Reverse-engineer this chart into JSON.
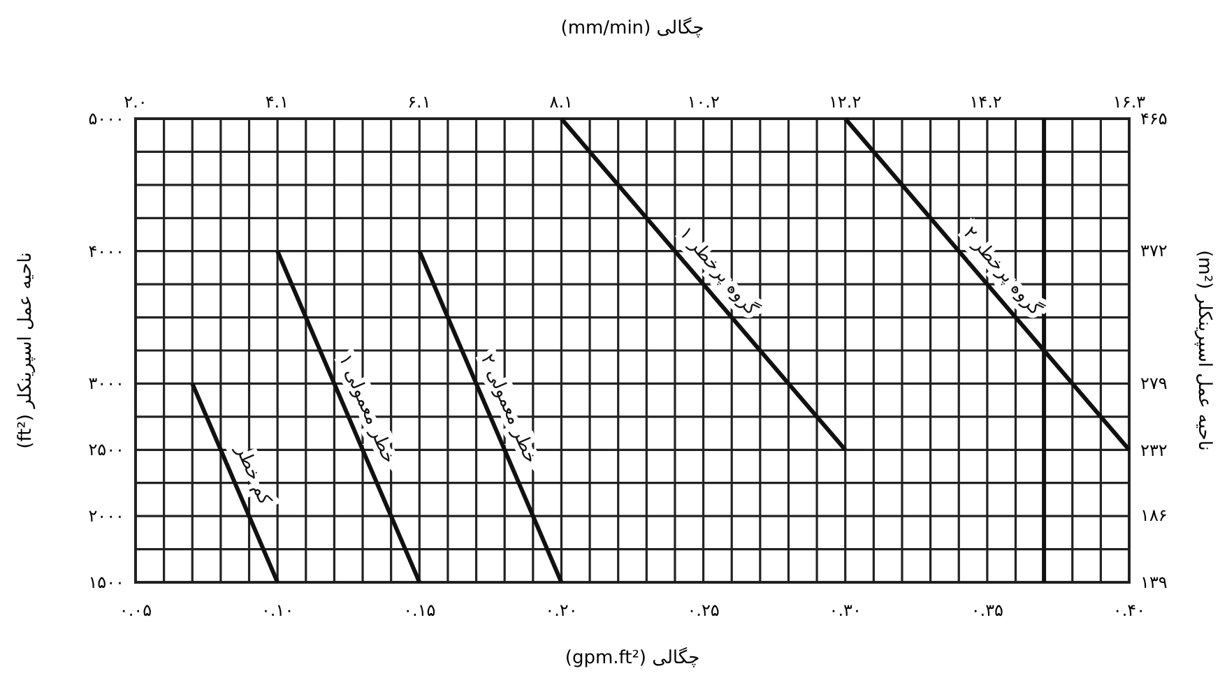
{
  "chart_data": {
    "type": "line",
    "xlabel": "چگالی (gpm.ft²)",
    "x2label": "چگالی (mm/min)",
    "ylabel": "ناحیه عمل اسپرینکلر (ft²)",
    "y2label": "ناحیه عمل اسپرینکلر (m²)",
    "xlim": [
      0.05,
      0.4
    ],
    "xticks": [
      {
        "value": 0.05,
        "label": "۰.۰۵"
      },
      {
        "value": 0.06,
        "label": null
      },
      {
        "value": 0.07,
        "label": null
      },
      {
        "value": 0.08,
        "label": null
      },
      {
        "value": 0.09,
        "label": null
      },
      {
        "value": 0.1,
        "label": "۰.۱۰"
      },
      {
        "value": 0.11,
        "label": null
      },
      {
        "value": 0.12,
        "label": null
      },
      {
        "value": 0.13,
        "label": null
      },
      {
        "value": 0.14,
        "label": null
      },
      {
        "value": 0.15,
        "label": "۰.۱۵"
      },
      {
        "value": 0.16,
        "label": null
      },
      {
        "value": 0.17,
        "label": null
      },
      {
        "value": 0.18,
        "label": null
      },
      {
        "value": 0.19,
        "label": null
      },
      {
        "value": 0.2,
        "label": "۰.۲۰"
      },
      {
        "value": 0.21,
        "label": null
      },
      {
        "value": 0.22,
        "label": null
      },
      {
        "value": 0.23,
        "label": null
      },
      {
        "value": 0.24,
        "label": null
      },
      {
        "value": 0.25,
        "label": "۰.۲۵"
      },
      {
        "value": 0.26,
        "label": null
      },
      {
        "value": 0.27,
        "label": null
      },
      {
        "value": 0.28,
        "label": null
      },
      {
        "value": 0.29,
        "label": null
      },
      {
        "value": 0.3,
        "label": "۰.۳۰"
      },
      {
        "value": 0.31,
        "label": null
      },
      {
        "value": 0.32,
        "label": null
      },
      {
        "value": 0.33,
        "label": null
      },
      {
        "value": 0.34,
        "label": null
      },
      {
        "value": 0.35,
        "label": "۰.۳۵"
      },
      {
        "value": 0.36,
        "label": null
      },
      {
        "value": 0.37,
        "label": null
      },
      {
        "value": 0.38,
        "label": null
      },
      {
        "value": 0.39,
        "label": null
      },
      {
        "value": 0.4,
        "label": "۰.۴۰"
      }
    ],
    "ylim": [
      1500,
      5000
    ],
    "yticks": [
      {
        "value": 1500,
        "label": "۱۵۰۰"
      },
      {
        "value": 1750,
        "label": null
      },
      {
        "value": 2000,
        "label": "۲۰۰۰"
      },
      {
        "value": 2250,
        "label": null
      },
      {
        "value": 2500,
        "label": "۲۵۰۰"
      },
      {
        "value": 2750,
        "label": null
      },
      {
        "value": 3000,
        "label": "۳۰۰۰"
      },
      {
        "value": 3250,
        "label": null
      },
      {
        "value": 3500,
        "label": null
      },
      {
        "value": 3750,
        "label": null
      },
      {
        "value": 4000,
        "label": "۴۰۰۰"
      },
      {
        "value": 4250,
        "label": null
      },
      {
        "value": 4500,
        "label": null
      },
      {
        "value": 4750,
        "label": null
      },
      {
        "value": 5000,
        "label": "۵۰۰۰"
      }
    ],
    "x2lim": [
      2.04,
      16.3
    ],
    "x2ticks": [
      {
        "value": 2.04,
        "label": "۲.۰"
      },
      {
        "value": 4.07,
        "label": "۴.۱"
      },
      {
        "value": 6.11,
        "label": "۶.۱"
      },
      {
        "value": 8.15,
        "label": "۸.۱"
      },
      {
        "value": 10.19,
        "label": "۱۰.۲"
      },
      {
        "value": 12.22,
        "label": "۱۲.۲"
      },
      {
        "value": 14.24,
        "label": "۱۴.۲"
      },
      {
        "value": 16.3,
        "label": "۱۶.۳"
      }
    ],
    "y2lim": [
      139,
      465
    ],
    "y2ticks": [
      {
        "value": 139,
        "label": "۱۳۹"
      },
      {
        "value": 186,
        "label": "۱۸۶"
      },
      {
        "value": 232,
        "label": "۲۳۲"
      },
      {
        "value": 279,
        "label": "۲۷۹"
      },
      {
        "value": 372,
        "label": "۳۷۲"
      },
      {
        "value": 465,
        "label": "۴۶۵"
      }
    ],
    "grid": true,
    "series": [
      {
        "name": "کم خطر",
        "color": "#111111",
        "x": [
          0.07,
          0.1
        ],
        "values": [
          3000,
          1500
        ]
      },
      {
        "name": "خطر معمولی ۱",
        "color": "#111111",
        "x": [
          0.1,
          0.15
        ],
        "values": [
          4000,
          1500
        ]
      },
      {
        "name": "خطر معمولی ۲",
        "color": "#111111",
        "x": [
          0.15,
          0.2
        ],
        "values": [
          4000,
          1500
        ]
      },
      {
        "name": "گروه پرخطر ۱",
        "color": "#111111",
        "x": [
          0.2,
          0.3
        ],
        "values": [
          5000,
          2500
        ]
      },
      {
        "name": "گروه پرخطر ۲",
        "color": "#111111",
        "x": [
          0.3,
          0.4
        ],
        "values": [
          5000,
          2500
        ]
      }
    ],
    "ref_lines": [
      {
        "axis": "x",
        "value": 0.37,
        "color": "#111111"
      }
    ]
  }
}
